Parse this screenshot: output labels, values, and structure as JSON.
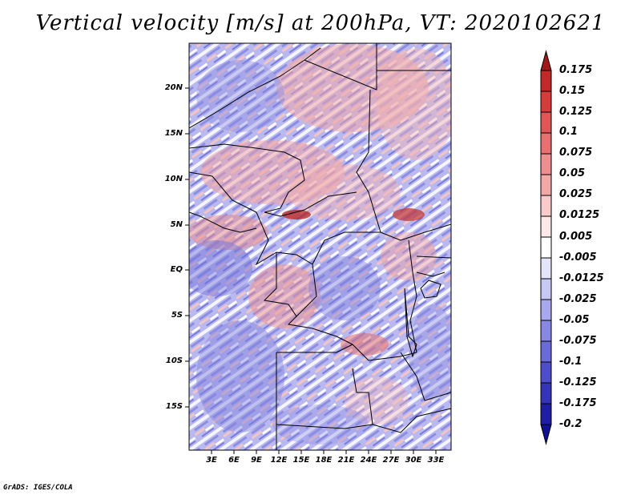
{
  "title": "Vertical velocity [m/s] at 200hPa, VT: 2020102621",
  "credit": "GrADS: IGES/COLA",
  "map": {
    "lat_labels": [
      "20N",
      "15N",
      "10N",
      "5N",
      "EQ",
      "5S",
      "10S",
      "15S"
    ],
    "lon_labels": [
      "3E",
      "6E",
      "9E",
      "12E",
      "15E",
      "18E",
      "21E",
      "24E",
      "27E",
      "30E",
      "33E"
    ]
  },
  "colorbar": {
    "levels": [
      "0.175",
      "0.15",
      "0.125",
      "0.1",
      "0.075",
      "0.05",
      "0.025",
      "0.0125",
      "0.005",
      "-0.005",
      "-0.0125",
      "-0.025",
      "-0.05",
      "-0.075",
      "-0.1",
      "-0.125",
      "-0.175",
      "-0.2"
    ],
    "colors": [
      "#a01818",
      "#c22a2a",
      "#d63c3c",
      "#e05656",
      "#e87070",
      "#ee8e8e",
      "#f3a8a8",
      "#f8caca",
      "#fce8e8",
      "#ffffff",
      "#e4e4fa",
      "#c8c8f4",
      "#a8a8ee",
      "#8888e4",
      "#6a6ad8",
      "#4e4ecc",
      "#3434b8",
      "#1e1ea4",
      "#121290"
    ]
  }
}
